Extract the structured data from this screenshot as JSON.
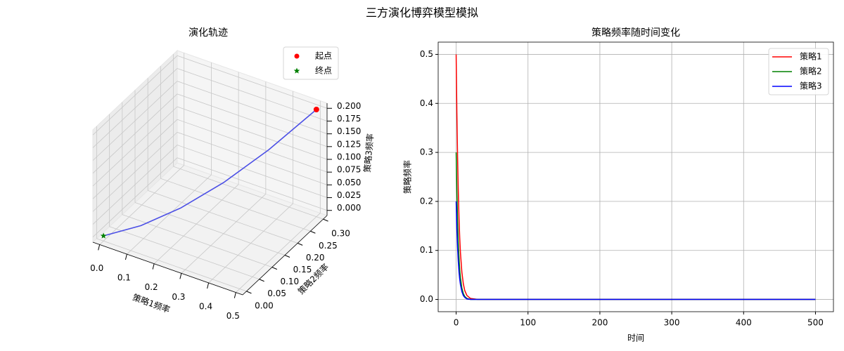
{
  "title": "三方演化博弈模型模拟",
  "chart_data": [
    {
      "type": "line3d",
      "title": "演化轨迹",
      "xlabel": "策略1频率",
      "ylabel": "策略2频率",
      "zlabel": "策略3频率",
      "x": [
        0.5,
        0.4,
        0.3,
        0.2,
        0.1,
        0.0
      ],
      "y": [
        0.3,
        0.22,
        0.15,
        0.09,
        0.04,
        0.0
      ],
      "z": [
        0.2,
        0.14,
        0.09,
        0.05,
        0.02,
        0.0
      ],
      "color": "#4b4fe6",
      "points": [
        {
          "name": "起点",
          "x": 0.5,
          "y": 0.3,
          "z": 0.2,
          "color": "#ff0000",
          "marker": "circle"
        },
        {
          "name": "终点",
          "x": 0,
          "y": 0,
          "z": 0,
          "color": "#008000",
          "marker": "star"
        }
      ],
      "xlim": [
        -0.025,
        0.525
      ],
      "ylim": [
        -0.015,
        0.315
      ],
      "zlim": [
        -0.01,
        0.21
      ],
      "xticks": [
        {
          "value": 0,
          "label": "0.0"
        },
        0.1,
        0.2,
        0.3,
        0.4,
        0.5
      ],
      "yticks": [
        {
          "value": 0,
          "label": "0.00"
        },
        0.05,
        {
          "value": 0.1,
          "label": "0.10"
        },
        0.15,
        {
          "value": 0.2,
          "label": "0.20"
        },
        0.25,
        {
          "value": 0.3,
          "label": "0.30"
        }
      ],
      "zticks": [
        {
          "value": 0,
          "label": "0.000"
        },
        0.025,
        {
          "value": 0.05,
          "label": "0.050"
        },
        0.075,
        {
          "value": 0.1,
          "label": "0.100"
        },
        0.125,
        {
          "value": 0.15,
          "label": "0.150"
        },
        0.175,
        {
          "value": 0.2,
          "label": "0.200"
        }
      ],
      "grid": true,
      "legend": "upper right"
    },
    {
      "type": "line",
      "title": "策略频率随时间变化",
      "xlabel": "时间",
      "ylabel": "策略频率",
      "x": [
        0,
        1,
        2,
        3,
        4,
        5,
        6,
        8,
        10,
        12,
        15,
        20,
        30,
        50,
        100,
        200,
        300,
        400,
        500
      ],
      "series": [
        {
          "name": "策略1",
          "color": "#ff0000",
          "values": [
            0.5,
            0.38,
            0.29,
            0.22,
            0.165,
            0.125,
            0.095,
            0.055,
            0.032,
            0.018,
            0.008,
            0.002,
            0,
            0,
            0,
            0,
            0,
            0,
            0
          ]
        },
        {
          "name": "策略2",
          "color": "#008000",
          "values": [
            0.3,
            0.22,
            0.16,
            0.115,
            0.085,
            0.06,
            0.044,
            0.023,
            0.012,
            0.006,
            0.002,
            0,
            0,
            0,
            0,
            0,
            0,
            0,
            0
          ]
        },
        {
          "name": "策略3",
          "color": "#0000ff",
          "values": [
            0.2,
            0.145,
            0.105,
            0.077,
            0.056,
            0.041,
            0.03,
            0.016,
            0.008,
            0.004,
            0.001,
            0,
            0,
            0,
            0,
            0,
            0,
            0,
            0
          ]
        }
      ],
      "xlim": [
        -25,
        525
      ],
      "xticks": [
        0,
        100,
        200,
        300,
        400,
        500
      ],
      "ylim": [
        -0.025,
        0.525
      ],
      "yticks": [
        {
          "value": 0,
          "label": "0.0"
        },
        0.1,
        0.2,
        0.3,
        0.4,
        0.5
      ],
      "grid": true,
      "legend": "upper right"
    }
  ]
}
